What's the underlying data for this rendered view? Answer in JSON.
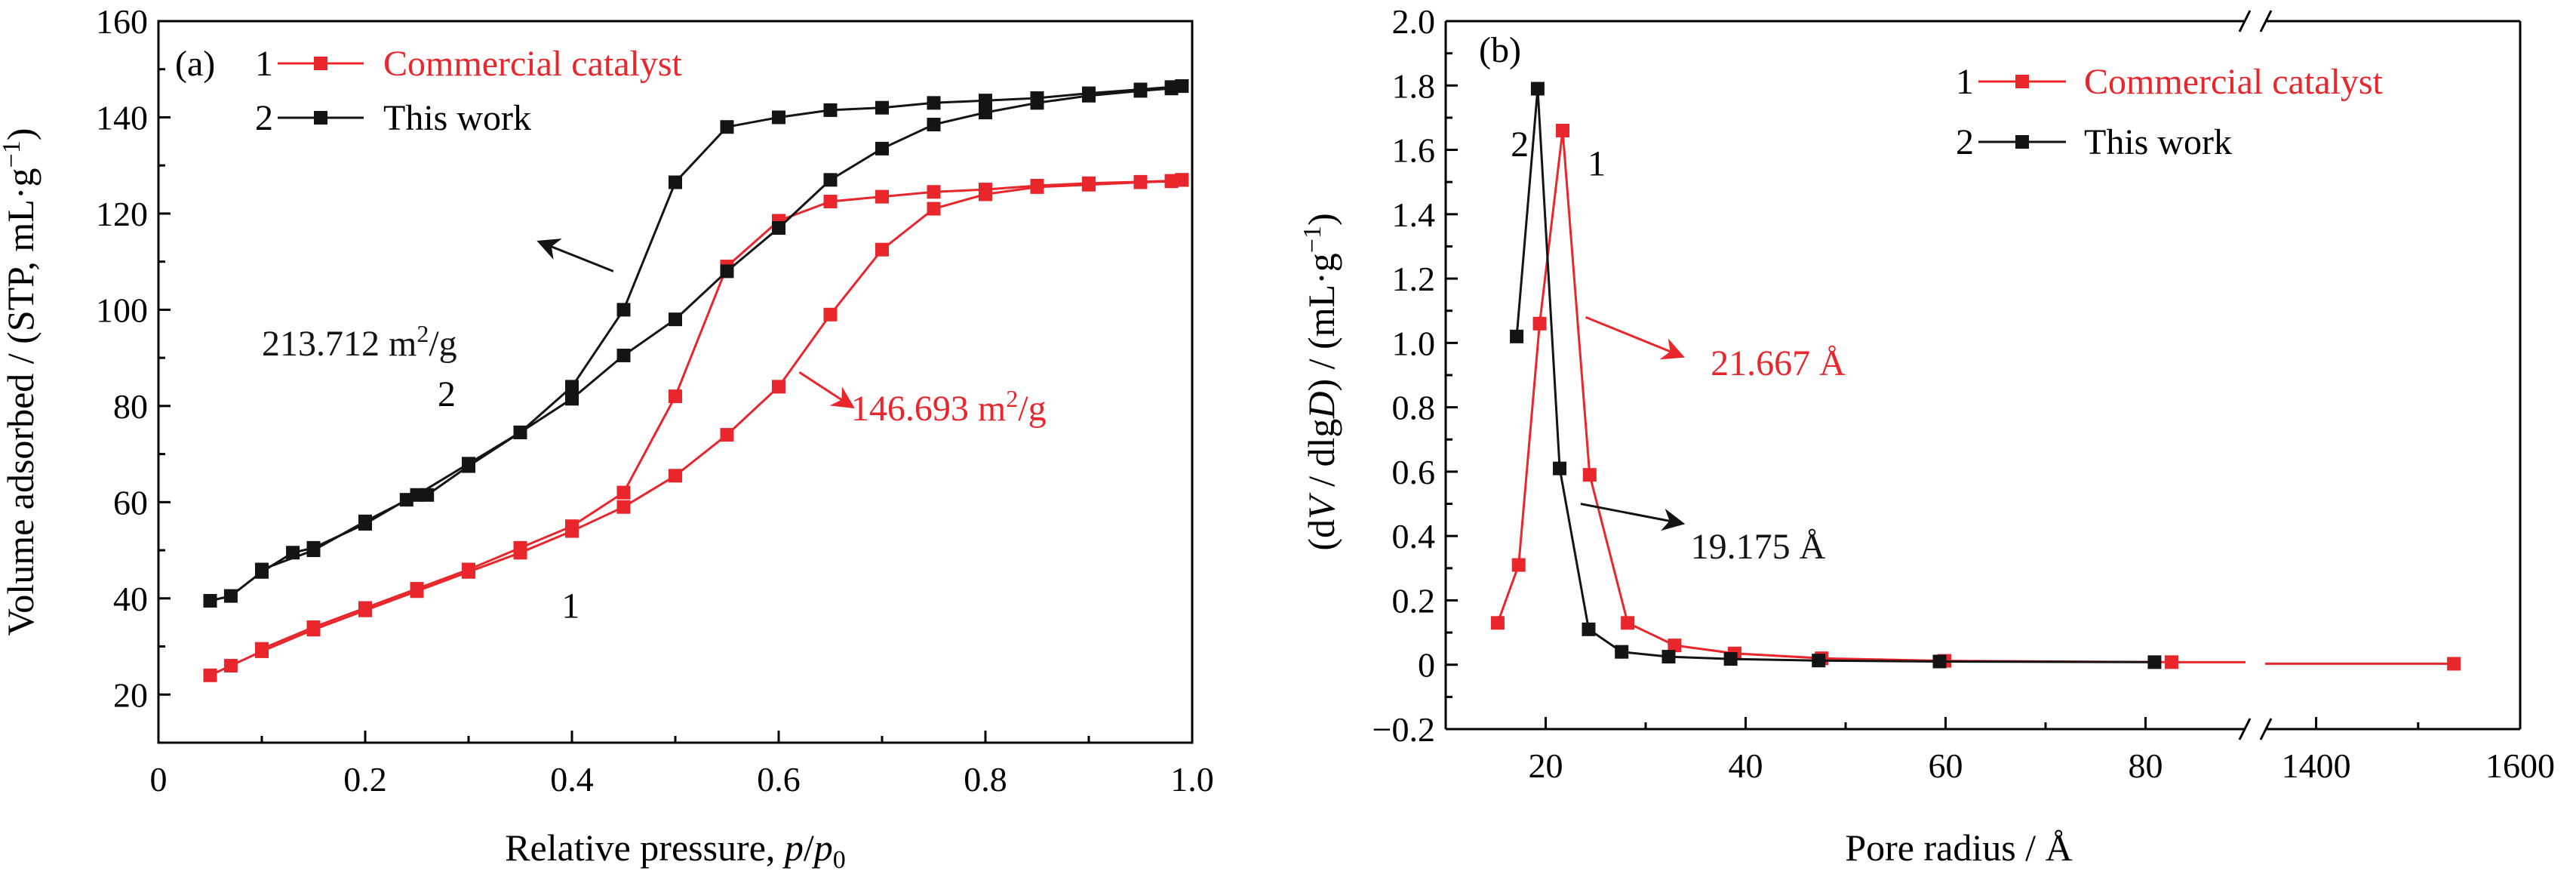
{
  "colors": {
    "series1": "#e8262b",
    "series2": "#141414",
    "axis": "#000000"
  },
  "chart_data": [
    {
      "panel": "(a)",
      "type": "line",
      "xlabel": "Relative pressure, p/p0",
      "xlabel_parts": [
        "Relative pressure, ",
        "p",
        "/",
        "p",
        "0"
      ],
      "ylabel": "Volume adsorbed / (STP, mL·g⁻¹)",
      "ylabel_parts": [
        "Volume adsorbed / (STP, mL·g",
        "−1",
        ")"
      ],
      "xlim": [
        0,
        1.0
      ],
      "ylim": [
        10,
        160
      ],
      "xticks": [
        0,
        0.2,
        0.4,
        0.6,
        0.8,
        1.0
      ],
      "xtick_labels": [
        "0",
        "0.2",
        "0.4",
        "0.6",
        "0.8",
        "1.0"
      ],
      "yticks": [
        20,
        40,
        60,
        80,
        100,
        120,
        140,
        160
      ],
      "ytick_labels": [
        "20",
        "40",
        "60",
        "80",
        "100",
        "120",
        "140",
        "160"
      ],
      "legend": [
        {
          "num": "1",
          "name": "Commercial catalyst",
          "color": "#e8262b"
        },
        {
          "num": "2",
          "name": "This work",
          "color": "#141414"
        }
      ],
      "curve_labels": [
        {
          "text": "1",
          "series": 1,
          "at": [
            0.39,
            36
          ]
        },
        {
          "text": "2",
          "series": 2,
          "at": [
            0.27,
            80
          ]
        }
      ],
      "annotations": [
        {
          "text": "213.712 m²/g",
          "base": "213.712 m",
          "sup": "2",
          "tail": "/g",
          "color": "#141414",
          "text_at": [
            0.1,
            90.5
          ],
          "arrow_from": [
            0.44,
            108
          ],
          "arrow_to": [
            0.37,
            114
          ]
        },
        {
          "text": "146.693 m²/g",
          "base": "146.693 m",
          "sup": "2",
          "tail": "/g",
          "color": "#e8262b",
          "text_at": [
            0.67,
            77
          ],
          "arrow_from": [
            0.62,
            87
          ],
          "arrow_to": [
            0.67,
            80
          ]
        }
      ],
      "series": [
        {
          "id": 1,
          "name": "Commercial catalyst",
          "color": "#e8262b",
          "adsorption": {
            "x": [
              0.05,
              0.07,
              0.1,
              0.15,
              0.2,
              0.25,
              0.3,
              0.35,
              0.4,
              0.45,
              0.5,
              0.55,
              0.6,
              0.65,
              0.7,
              0.75,
              0.8,
              0.85,
              0.9,
              0.95,
              0.98,
              0.99
            ],
            "y": [
              24,
              26,
              29,
              33.5,
              37.5,
              41.5,
              45.5,
              49.5,
              54,
              59,
              65.5,
              74,
              84,
              99,
              112.5,
              121,
              124,
              125.5,
              126,
              126.5,
              126.7,
              127
            ]
          },
          "desorption": {
            "x": [
              0.99,
              0.98,
              0.95,
              0.9,
              0.85,
              0.8,
              0.75,
              0.7,
              0.65,
              0.6,
              0.55,
              0.5,
              0.45,
              0.4,
              0.35,
              0.3,
              0.25,
              0.2,
              0.15,
              0.1
            ],
            "y": [
              127,
              126.8,
              126.6,
              126.3,
              125.8,
              125,
              124.5,
              123.5,
              122.5,
              118.5,
              109,
              82,
              62,
              55,
              50.5,
              46,
              42,
              38,
              34,
              29.5
            ]
          }
        },
        {
          "id": 2,
          "name": "This work",
          "color": "#141414",
          "adsorption": {
            "x": [
              0.05,
              0.07,
              0.1,
              0.13,
              0.15,
              0.2,
              0.24,
              0.26,
              0.3,
              0.35,
              0.4,
              0.45,
              0.5,
              0.55,
              0.6,
              0.65,
              0.7,
              0.75,
              0.8,
              0.85,
              0.9,
              0.95,
              0.98,
              0.99
            ],
            "y": [
              39.5,
              40.5,
              45.5,
              49.5,
              50.5,
              55.5,
              60.5,
              61.5,
              67.5,
              74.5,
              81.5,
              90.5,
              98,
              108,
              117,
              127,
              133.5,
              138.5,
              141,
              143,
              144.5,
              145.5,
              146,
              146.5
            ]
          },
          "desorption": {
            "x": [
              0.99,
              0.98,
              0.95,
              0.9,
              0.85,
              0.8,
              0.75,
              0.7,
              0.65,
              0.6,
              0.55,
              0.5,
              0.45,
              0.4,
              0.35,
              0.3,
              0.25,
              0.2,
              0.15,
              0.1
            ],
            "y": [
              146.5,
              146.3,
              145.8,
              145,
              144,
              143.5,
              143,
              142,
              141.5,
              140,
              138,
              126.5,
              100,
              84,
              74.5,
              68,
              61.5,
              56,
              50,
              46
            ]
          }
        }
      ]
    },
    {
      "panel": "(b)",
      "type": "line",
      "xlabel": "Pore radius / Å",
      "ylabel": "(dV / dlgD) / (mL·g⁻¹)",
      "ylabel_parts": [
        "(d",
        "V",
        " / dlg",
        "D",
        ") / (mL·g",
        "−1",
        ")"
      ],
      "axis_break": true,
      "x_segments": [
        {
          "xlim": [
            10,
            90
          ]
        },
        {
          "xlim": [
            1350,
            1600
          ]
        }
      ],
      "ylim": [
        -0.2,
        2.0
      ],
      "xticks": [
        20,
        40,
        60,
        80,
        1400,
        1600
      ],
      "xtick_labels": [
        "20",
        "40",
        "60",
        "80",
        "1400",
        "1600"
      ],
      "yticks": [
        -0.2,
        0,
        0.2,
        0.4,
        0.6,
        0.8,
        1.0,
        1.2,
        1.4,
        1.6,
        1.8,
        2.0
      ],
      "ytick_labels": [
        "−0.2",
        "0",
        "0.2",
        "0.4",
        "0.6",
        "0.8",
        "1.0",
        "1.2",
        "1.4",
        "1.6",
        "1.8",
        "2.0"
      ],
      "legend": [
        {
          "num": "1",
          "name": "Commercial catalyst",
          "color": "#e8262b"
        },
        {
          "num": "2",
          "name": "This work",
          "color": "#141414"
        }
      ],
      "curve_labels": [
        {
          "text": "2",
          "series": 2,
          "at": [
            16.5,
            1.58
          ]
        },
        {
          "text": "1",
          "series": 1,
          "at": [
            24.2,
            1.52
          ]
        }
      ],
      "annotations": [
        {
          "text": "21.667 Å",
          "color": "#e8262b",
          "text_at": [
            36.5,
            0.9
          ],
          "arrow_from": [
            24,
            1.08
          ],
          "arrow_to": [
            33.5,
            0.96
          ]
        },
        {
          "text": "19.175 Å",
          "color": "#141414",
          "text_at": [
            34.5,
            0.33
          ],
          "arrow_from": [
            23.5,
            0.5
          ],
          "arrow_to": [
            33.5,
            0.44
          ]
        }
      ],
      "series": [
        {
          "id": 1,
          "name": "Commercial catalyst",
          "color": "#e8262b",
          "x": [
            15.2,
            17.3,
            19.4,
            21.7,
            24.4,
            28.2,
            32.9,
            38.9,
            47.6,
            59.9,
            82.6,
            1535
          ],
          "y": [
            0.13,
            0.31,
            1.06,
            1.66,
            0.59,
            0.13,
            0.06,
            0.035,
            0.02,
            0.012,
            0.008,
            0.003
          ]
        },
        {
          "id": 2,
          "name": "This work",
          "color": "#141414",
          "x": [
            17.1,
            19.2,
            21.4,
            24.3,
            27.6,
            32.3,
            38.5,
            47.3,
            59.4,
            80.9
          ],
          "y": [
            1.02,
            1.79,
            0.61,
            0.11,
            0.04,
            0.025,
            0.018,
            0.013,
            0.01,
            0.008
          ]
        }
      ]
    }
  ]
}
